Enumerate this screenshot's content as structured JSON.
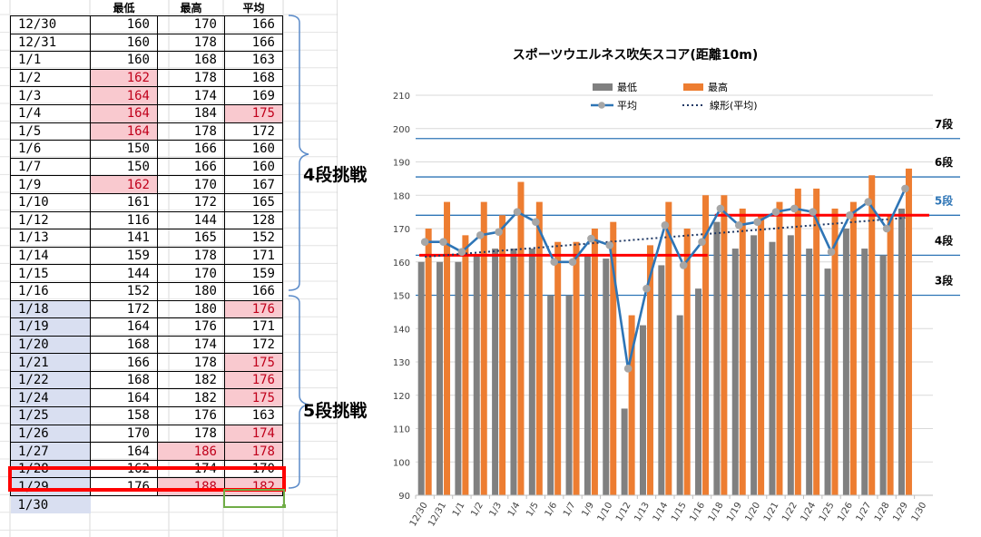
{
  "sheet": {
    "headers": [
      "最低",
      "最高",
      "平均"
    ],
    "rows": [
      {
        "date": "12/30",
        "min": "160",
        "max": "170",
        "avg": "166",
        "hl": []
      },
      {
        "date": "12/31",
        "min": "160",
        "max": "178",
        "avg": "166",
        "hl": []
      },
      {
        "date": "1/1",
        "min": "160",
        "max": "168",
        "avg": "163",
        "hl": []
      },
      {
        "date": "1/2",
        "min": "162",
        "max": "178",
        "avg": "168",
        "hl": [
          "min"
        ]
      },
      {
        "date": "1/3",
        "min": "164",
        "max": "174",
        "avg": "169",
        "hl": [
          "min"
        ]
      },
      {
        "date": "1/4",
        "min": "164",
        "max": "184",
        "avg": "175",
        "hl": [
          "min",
          "avg"
        ]
      },
      {
        "date": "1/5",
        "min": "164",
        "max": "178",
        "avg": "172",
        "hl": [
          "min"
        ]
      },
      {
        "date": "1/6",
        "min": "150",
        "max": "166",
        "avg": "160",
        "hl": []
      },
      {
        "date": "1/7",
        "min": "150",
        "max": "166",
        "avg": "160",
        "hl": []
      },
      {
        "date": "1/9",
        "min": "162",
        "max": "170",
        "avg": "167",
        "hl": [
          "min"
        ]
      },
      {
        "date": "1/10",
        "min": "161",
        "max": "172",
        "avg": "165",
        "hl": []
      },
      {
        "date": "1/12",
        "min": "116",
        "max": "144",
        "avg": "128",
        "hl": []
      },
      {
        "date": "1/13",
        "min": "141",
        "max": "165",
        "avg": "152",
        "hl": []
      },
      {
        "date": "1/14",
        "min": "159",
        "max": "178",
        "avg": "171",
        "hl": []
      },
      {
        "date": "1/15",
        "min": "144",
        "max": "170",
        "avg": "159",
        "hl": []
      },
      {
        "date": "1/16",
        "min": "152",
        "max": "180",
        "avg": "166",
        "hl": []
      },
      {
        "date": "1/18",
        "min": "172",
        "max": "180",
        "avg": "176",
        "hl": [
          "avg",
          "date"
        ]
      },
      {
        "date": "1/19",
        "min": "164",
        "max": "176",
        "avg": "171",
        "hl": [
          "date"
        ]
      },
      {
        "date": "1/20",
        "min": "168",
        "max": "174",
        "avg": "172",
        "hl": [
          "date"
        ]
      },
      {
        "date": "1/21",
        "min": "166",
        "max": "178",
        "avg": "175",
        "hl": [
          "avg",
          "date"
        ]
      },
      {
        "date": "1/22",
        "min": "168",
        "max": "182",
        "avg": "176",
        "hl": [
          "avg",
          "date"
        ]
      },
      {
        "date": "1/24",
        "min": "164",
        "max": "182",
        "avg": "175",
        "hl": [
          "avg",
          "date"
        ]
      },
      {
        "date": "1/25",
        "min": "158",
        "max": "176",
        "avg": "163",
        "hl": [
          "date"
        ]
      },
      {
        "date": "1/26",
        "min": "170",
        "max": "178",
        "avg": "174",
        "hl": [
          "avg",
          "date"
        ]
      },
      {
        "date": "1/27",
        "min": "164",
        "max": "186",
        "avg": "178",
        "hl": [
          "max",
          "avg",
          "date"
        ]
      },
      {
        "date": "1/28",
        "min": "162",
        "max": "174",
        "avg": "170",
        "hl": [
          "date"
        ]
      },
      {
        "date": "1/29",
        "min": "176",
        "max": "188",
        "avg": "182",
        "hl": [
          "max",
          "avg",
          "date"
        ]
      },
      {
        "date": "1/30",
        "min": "",
        "max": "",
        "avg": "",
        "hl": [
          "date"
        ]
      }
    ]
  },
  "annotations": {
    "dan4_challenge": "4段挑戦",
    "dan5_challenge": "5段挑戦"
  },
  "chart_data": {
    "type": "bar",
    "title": "スポーツウエルネス吹矢スコア(距離10m)",
    "categories": [
      "12/30",
      "12/31",
      "1/1",
      "1/2",
      "1/3",
      "1/4",
      "1/5",
      "1/6",
      "1/7",
      "1/9",
      "1/10",
      "1/12",
      "1/13",
      "1/14",
      "1/15",
      "1/16",
      "1/18",
      "1/19",
      "1/20",
      "1/21",
      "1/22",
      "1/24",
      "1/25",
      "1/26",
      "1/27",
      "1/28",
      "1/29",
      "1/30"
    ],
    "series": [
      {
        "name": "最低",
        "kind": "bar",
        "color": "#808080",
        "values": [
          160,
          160,
          160,
          162,
          164,
          164,
          164,
          150,
          150,
          162,
          161,
          116,
          141,
          159,
          144,
          152,
          172,
          164,
          168,
          166,
          168,
          164,
          158,
          170,
          164,
          162,
          176,
          null
        ]
      },
      {
        "name": "最高",
        "kind": "bar",
        "color": "#ed7d31",
        "values": [
          170,
          178,
          168,
          178,
          174,
          184,
          178,
          166,
          166,
          170,
          172,
          144,
          165,
          178,
          170,
          180,
          180,
          176,
          174,
          178,
          182,
          182,
          176,
          178,
          186,
          174,
          188,
          null
        ]
      },
      {
        "name": "平均",
        "kind": "line",
        "color": "#2e75b6",
        "values": [
          166,
          166,
          163,
          168,
          169,
          175,
          172,
          160,
          160,
          167,
          165,
          128,
          152,
          171,
          159,
          166,
          176,
          171,
          172,
          175,
          176,
          175,
          163,
          174,
          178,
          170,
          182,
          null
        ]
      },
      {
        "name": "線形(平均)",
        "kind": "trend",
        "color": "#1f3864"
      }
    ],
    "ylim": [
      90,
      210
    ],
    "yticks": [
      90,
      100,
      110,
      120,
      130,
      140,
      150,
      160,
      170,
      180,
      190,
      200,
      210
    ],
    "levels": [
      {
        "label": "7段",
        "value": 197,
        "color": "#2e75b6",
        "text_color": "#000000"
      },
      {
        "label": "6段",
        "value": 185.5,
        "color": "#2e75b6",
        "text_color": "#000000"
      },
      {
        "label": "5段",
        "value": 174,
        "color": "#2e75b6",
        "text_color": "#2e75b6"
      },
      {
        "label": "4段",
        "value": 162,
        "color": "#2e75b6",
        "text_color": "#000000"
      },
      {
        "label": "3段",
        "value": 150,
        "color": "#2e75b6",
        "text_color": "#000000"
      }
    ],
    "red_lines": [
      {
        "value": 162,
        "from": "12/30",
        "to": "1/16"
      },
      {
        "value": 174,
        "from": "1/18",
        "to": "1/30"
      }
    ],
    "legend_position": "top"
  }
}
